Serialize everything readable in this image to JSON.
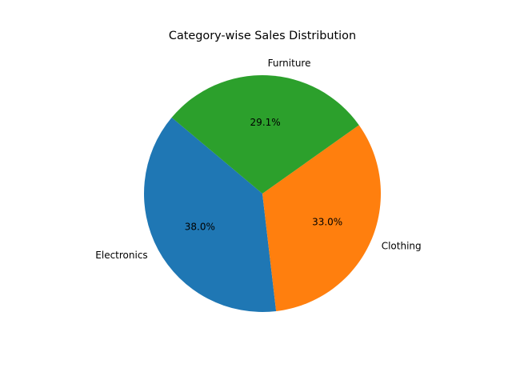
{
  "chart_data": {
    "type": "pie",
    "title": "Category-wise Sales Distribution",
    "categories": [
      "Electronics",
      "Clothing",
      "Furniture"
    ],
    "values": [
      38.0,
      33.0,
      29.1
    ],
    "percent_labels": [
      "38.0%",
      "33.0%",
      "29.1%"
    ],
    "colors": [
      "#1f77b4",
      "#ff7f0e",
      "#2ca02c"
    ],
    "start_angle_deg": 140,
    "direction": "counterclockwise",
    "legend": "none"
  }
}
